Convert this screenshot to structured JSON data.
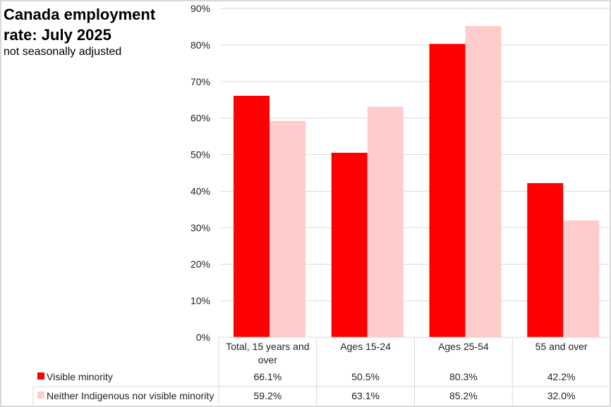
{
  "chart_data": {
    "type": "bar",
    "title": "Canada employment rate: July 2025",
    "subtitle": "not seasonally adjusted",
    "categories": [
      "Total, 15 years and over",
      "Ages 15-24",
      "Ages 25-54",
      "55 and over"
    ],
    "category_lines": [
      [
        "Total, 15 years and",
        "over"
      ],
      [
        "Ages 15-24"
      ],
      [
        "Ages 25-54"
      ],
      [
        "55 and over"
      ]
    ],
    "series": [
      {
        "name": "Visible minority",
        "color": "#ff0000",
        "values": [
          66.1,
          50.5,
          80.3,
          42.2
        ],
        "labels": [
          "66.1%",
          "50.5%",
          "80.3%",
          "42.2%"
        ]
      },
      {
        "name": "Neither Indigenous nor visible minority",
        "color": "#ffcccc",
        "values": [
          59.2,
          63.1,
          85.2,
          32.0
        ],
        "labels": [
          "59.2%",
          "63.1%",
          "85.2%",
          "32.0%"
        ]
      }
    ],
    "ylim": [
      0,
      90
    ],
    "yticks": [
      0,
      10,
      20,
      30,
      40,
      50,
      60,
      70,
      80,
      90
    ],
    "ytick_labels": [
      "0%",
      "10%",
      "20%",
      "30%",
      "40%",
      "50%",
      "60%",
      "70%",
      "80%",
      "90%"
    ],
    "grid": true,
    "legend": "data-table-bottom",
    "xlabel": "",
    "ylabel": ""
  }
}
